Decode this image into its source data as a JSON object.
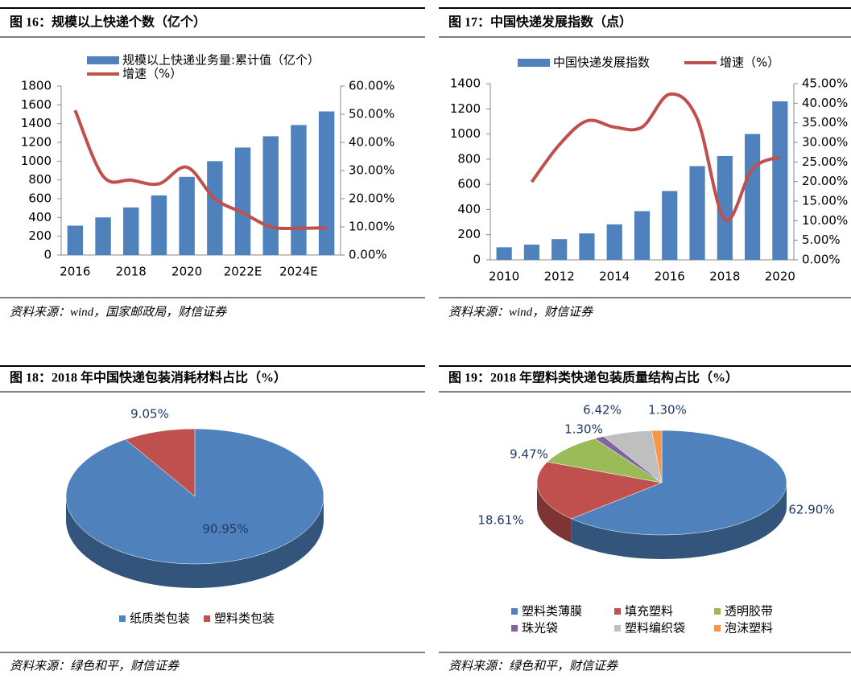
{
  "chart_data": [
    {
      "type": "combo",
      "title": "图 16：规模以上快递个数（亿个）",
      "source": "资料来源：wind，国家邮政局，财信证券",
      "categories": [
        "2016",
        null,
        "2018",
        null,
        "2020",
        null,
        "2022E",
        null,
        "2024E",
        null
      ],
      "series": [
        {
          "name": "规模以上快递业务量:累计值（亿个）",
          "type": "bar",
          "color": "#4f81bd",
          "values": [
            313,
            401,
            507,
            635,
            833,
            1000,
            1145,
            1265,
            1385,
            1530
          ]
        },
        {
          "name": "增速（%）",
          "type": "line",
          "axis": "y2",
          "color": "#c0504d",
          "values": [
            51.4,
            28.0,
            26.6,
            25.3,
            31.2,
            20.0,
            15.0,
            10.0,
            9.5,
            9.7
          ]
        }
      ],
      "ylim": [
        0,
        1800
      ],
      "yticks": [
        0,
        200,
        400,
        600,
        800,
        1000,
        1200,
        1400,
        1600,
        1800
      ],
      "y2lim": [
        0,
        60
      ],
      "y2ticks": [
        {
          "value": 0,
          "label": "0.00%"
        },
        {
          "value": 10,
          "label": "10.00%"
        },
        {
          "value": 20,
          "label": "20.00%"
        },
        {
          "value": 30,
          "label": "30.00%"
        },
        {
          "value": 40,
          "label": "40.00%"
        },
        {
          "value": 50,
          "label": "50.00%"
        },
        {
          "value": 60,
          "label": "60.00%"
        }
      ]
    },
    {
      "type": "combo",
      "title": "图 17：中国快递发展指数（点）",
      "source": "资料来源：wind，财信证券",
      "categories": [
        "2010",
        null,
        "2012",
        null,
        "2014",
        null,
        "2016",
        null,
        "2018",
        null,
        "2020"
      ],
      "series": [
        {
          "name": "中国快递发展指数",
          "type": "bar",
          "color": "#4f81bd",
          "values": [
            100,
            121,
            165,
            210,
            282,
            387,
            547,
            745,
            825,
            1000,
            1260
          ]
        },
        {
          "name": "增速（%）",
          "type": "line",
          "axis": "y2",
          "color": "#c0504d",
          "values": [
            null,
            19.9,
            29.4,
            35.5,
            33.9,
            33.9,
            42.3,
            36.0,
            10.3,
            23.2,
            26.3
          ]
        }
      ],
      "ylim": [
        0,
        1400
      ],
      "yticks": [
        0,
        200,
        400,
        600,
        800,
        1000,
        1200,
        1400
      ],
      "y2lim": [
        0,
        45
      ],
      "y2ticks": [
        {
          "value": 0,
          "label": "0.00%"
        },
        {
          "value": 5,
          "label": "5.00%"
        },
        {
          "value": 10,
          "label": "10.00%"
        },
        {
          "value": 15,
          "label": "15.00%"
        },
        {
          "value": 20,
          "label": "20.00%"
        },
        {
          "value": 25,
          "label": "25.00%"
        },
        {
          "value": 30,
          "label": "30.00%"
        },
        {
          "value": 35,
          "label": "35.00%"
        },
        {
          "value": 40,
          "label": "40.00%"
        },
        {
          "value": 45,
          "label": "45.00%"
        }
      ]
    },
    {
      "type": "pie",
      "title": "图 18：2018 年中国快递包装消耗材料占比（%）",
      "source": "资料来源：绿色和平，财信证券",
      "categories": [
        "纸质类包装",
        "塑料类包装"
      ],
      "values": [
        90.95,
        9.05
      ],
      "value_labels": [
        "90.95%",
        "9.05%"
      ],
      "colors": [
        "#4f81bd",
        "#c0504d"
      ]
    },
    {
      "type": "pie",
      "title": "图 19：2018 年塑料类快递包装质量结构占比（%）",
      "source": "资料来源：绿色和平，财信证券",
      "categories": [
        "塑料类薄膜",
        "填充塑料",
        "透明胶带",
        "珠光袋",
        "塑料编织袋",
        "泡沫塑料"
      ],
      "values": [
        62.9,
        18.61,
        9.47,
        1.3,
        6.42,
        1.3
      ],
      "value_labels": [
        "62.90%",
        "18.61%",
        "9.47%",
        "1.30%",
        "6.42%",
        "1.30%"
      ],
      "colors": [
        "#4f81bd",
        "#c0504d",
        "#9bbb59",
        "#8064a2",
        "#bfbfbf",
        "#f79646"
      ]
    }
  ]
}
